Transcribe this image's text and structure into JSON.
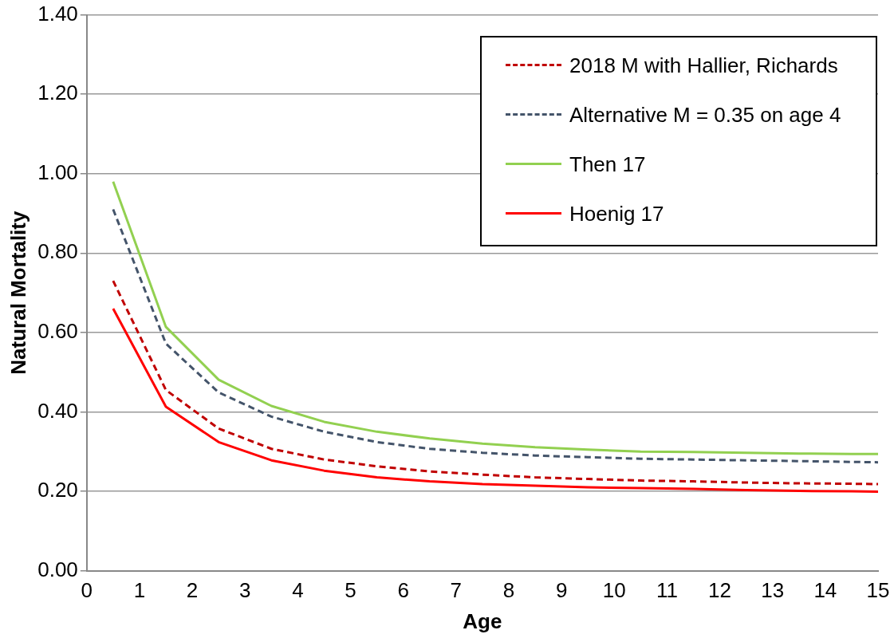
{
  "chart_data": {
    "type": "line",
    "xlabel": "Age",
    "ylabel": "Natural Mortality",
    "x": [
      0.5,
      1.5,
      2.5,
      3.5,
      4.5,
      5.5,
      6.5,
      7.5,
      8.5,
      9.5,
      10.5,
      11.5,
      12.5,
      13.5,
      14.5,
      15
    ],
    "xlim": [
      0,
      15
    ],
    "xticks": [
      0,
      1,
      2,
      3,
      4,
      5,
      6,
      7,
      8,
      9,
      10,
      11,
      12,
      13,
      14,
      15
    ],
    "ylim": [
      0,
      1.4
    ],
    "yticks": [
      {
        "value": 0,
        "label": "0.00"
      },
      {
        "value": 0.2,
        "label": "0.20"
      },
      {
        "value": 0.4,
        "label": "0.40"
      },
      {
        "value": 0.6,
        "label": "0.60"
      },
      {
        "value": 0.8,
        "label": "0.80"
      },
      {
        "value": 1,
        "label": "1.00"
      },
      {
        "value": 1.2,
        "label": "1.20"
      },
      {
        "value": 1.4,
        "label": "1.40"
      }
    ],
    "grid": "y",
    "legend": "top right",
    "marker": "none",
    "series": [
      {
        "name": "2018 M with Hallier, Richards",
        "color": "#c00000",
        "line_style": "dashed",
        "values": [
          0.73,
          0.455,
          0.358,
          0.307,
          0.28,
          0.263,
          0.25,
          0.242,
          0.235,
          0.231,
          0.227,
          0.225,
          0.222,
          0.22,
          0.219,
          0.218
        ]
      },
      {
        "name": "Alternative M = 0.35 on age 4",
        "color": "#44546a",
        "line_style": "dashed",
        "values": [
          0.91,
          0.572,
          0.449,
          0.388,
          0.35,
          0.324,
          0.307,
          0.297,
          0.29,
          0.286,
          0.282,
          0.28,
          0.278,
          0.276,
          0.274,
          0.273
        ]
      },
      {
        "name": "Then 17",
        "color": "#92d050",
        "line_style": "solid",
        "values": [
          0.98,
          0.614,
          0.481,
          0.415,
          0.375,
          0.35,
          0.333,
          0.32,
          0.311,
          0.305,
          0.3,
          0.299,
          0.297,
          0.295,
          0.294,
          0.294
        ]
      },
      {
        "name": "Hoenig 17",
        "color": "#ff0000",
        "line_style": "solid",
        "values": [
          0.66,
          0.413,
          0.324,
          0.278,
          0.252,
          0.235,
          0.225,
          0.218,
          0.214,
          0.21,
          0.208,
          0.206,
          0.203,
          0.201,
          0.2,
          0.199
        ]
      }
    ]
  }
}
